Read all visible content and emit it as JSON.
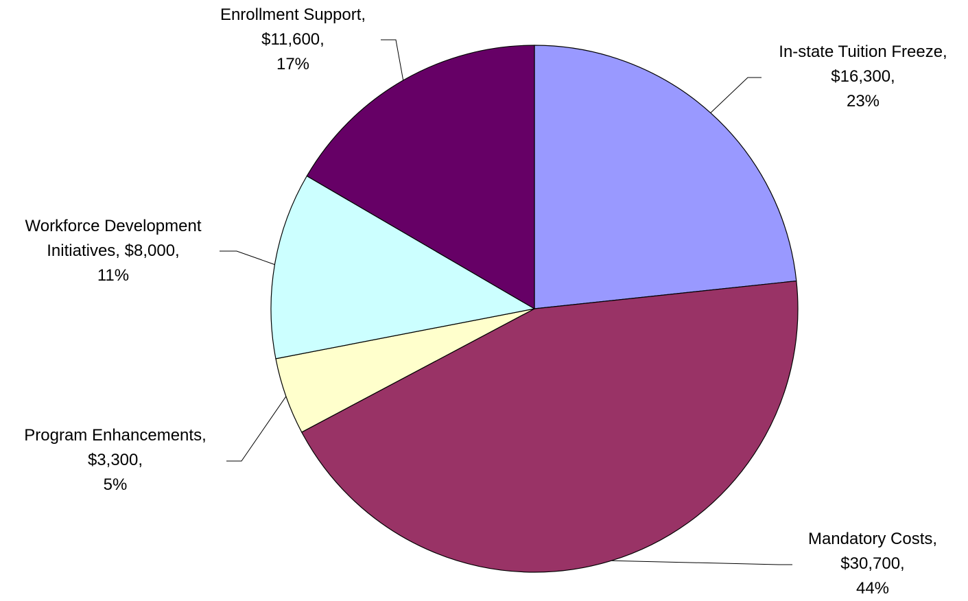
{
  "chart_data": {
    "type": "pie",
    "slices": [
      {
        "name": "In-state Tuition Freeze",
        "value": 16300,
        "value_label": "$16,300",
        "percent": 23,
        "percent_label": "23%",
        "color": "#9999FF"
      },
      {
        "name": "Mandatory Costs",
        "value": 30700,
        "value_label": "$30,700",
        "percent": 44,
        "percent_label": "44%",
        "color": "#993366"
      },
      {
        "name": "Program Enhancements",
        "value": 3300,
        "value_label": "$3,300",
        "percent": 5,
        "percent_label": "5%",
        "color": "#FFFFCC"
      },
      {
        "name": "Workforce Development Initiatives",
        "value": 8000,
        "value_label": "$8,000",
        "percent": 11,
        "percent_label": "11%",
        "color": "#CCFFFF"
      },
      {
        "name": "Enrollment Support",
        "value": 11600,
        "value_label": "$11,600",
        "percent": 17,
        "percent_label": "17%",
        "color": "#660066"
      }
    ],
    "label_text": [
      [
        "In-state Tuition Freeze,",
        "$16,300,",
        "23%"
      ],
      [
        "Mandatory Costs,",
        "$30,700,",
        "44%"
      ],
      [
        "Program Enhancements,",
        "$3,300,",
        "5%"
      ],
      [
        "Workforce Development",
        "Initiatives, $8,000,",
        "11%"
      ],
      [
        "Enrollment Support,",
        "$11,600,",
        "17%"
      ]
    ],
    "start_angle": "12 o'clock",
    "direction": "clockwise"
  }
}
